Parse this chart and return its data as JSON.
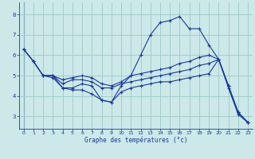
{
  "title": "Graphe des températures (°c)",
  "background_color": "#cce8e8",
  "grid_color": "#9fc8c8",
  "line_color": "#1a3a9a",
  "xlim": [
    -0.5,
    23.5
  ],
  "ylim": [
    2.4,
    8.6
  ],
  "yticks": [
    3,
    4,
    5,
    6,
    7,
    8
  ],
  "xticks": [
    0,
    1,
    2,
    3,
    4,
    5,
    6,
    7,
    8,
    9,
    10,
    11,
    12,
    13,
    14,
    15,
    16,
    17,
    18,
    19,
    20,
    21,
    22,
    23
  ],
  "lines": [
    {
      "x": [
        0,
        1,
        2,
        3,
        4,
        5,
        6,
        7,
        8,
        9,
        10,
        11,
        12,
        13,
        14,
        15,
        16,
        17,
        18,
        19,
        20,
        21,
        22,
        23
      ],
      "y": [
        6.3,
        5.7,
        5.0,
        5.0,
        4.4,
        4.4,
        4.6,
        4.5,
        3.8,
        3.7,
        4.5,
        5.0,
        6.0,
        7.0,
        7.6,
        7.7,
        7.9,
        7.3,
        7.3,
        6.5,
        5.8,
        4.4,
        3.1,
        2.7
      ]
    },
    {
      "x": [
        0,
        1,
        2,
        3,
        4,
        5,
        6,
        7,
        8,
        9,
        10,
        11,
        12,
        13,
        14,
        15,
        16,
        17,
        18,
        19,
        20,
        21,
        22,
        23
      ],
      "y": [
        6.3,
        5.7,
        5.0,
        5.0,
        4.8,
        4.9,
        5.0,
        4.9,
        4.6,
        4.5,
        4.7,
        5.0,
        5.1,
        5.2,
        5.3,
        5.4,
        5.6,
        5.7,
        5.9,
        6.0,
        5.8,
        4.5,
        3.2,
        2.7
      ]
    },
    {
      "x": [
        2,
        3,
        4,
        5,
        6,
        7,
        8,
        9,
        10,
        11,
        12,
        13,
        14,
        15,
        16,
        17,
        18,
        19,
        20,
        21,
        22,
        23
      ],
      "y": [
        5.0,
        5.0,
        4.6,
        4.8,
        4.8,
        4.7,
        4.4,
        4.4,
        4.6,
        4.7,
        4.8,
        4.9,
        5.0,
        5.1,
        5.2,
        5.3,
        5.5,
        5.6,
        5.8,
        4.5,
        3.2,
        2.7
      ]
    },
    {
      "x": [
        0,
        1,
        2,
        3,
        4,
        5,
        6,
        7,
        8,
        9,
        10,
        11,
        12,
        13,
        14,
        15,
        16,
        17,
        18,
        19,
        20,
        21,
        22,
        23
      ],
      "y": [
        6.3,
        5.7,
        5.0,
        4.9,
        4.4,
        4.3,
        4.3,
        4.1,
        3.8,
        3.7,
        4.2,
        4.4,
        4.5,
        4.6,
        4.7,
        4.7,
        4.8,
        4.9,
        5.0,
        5.1,
        5.8,
        4.5,
        3.2,
        2.7
      ]
    }
  ]
}
